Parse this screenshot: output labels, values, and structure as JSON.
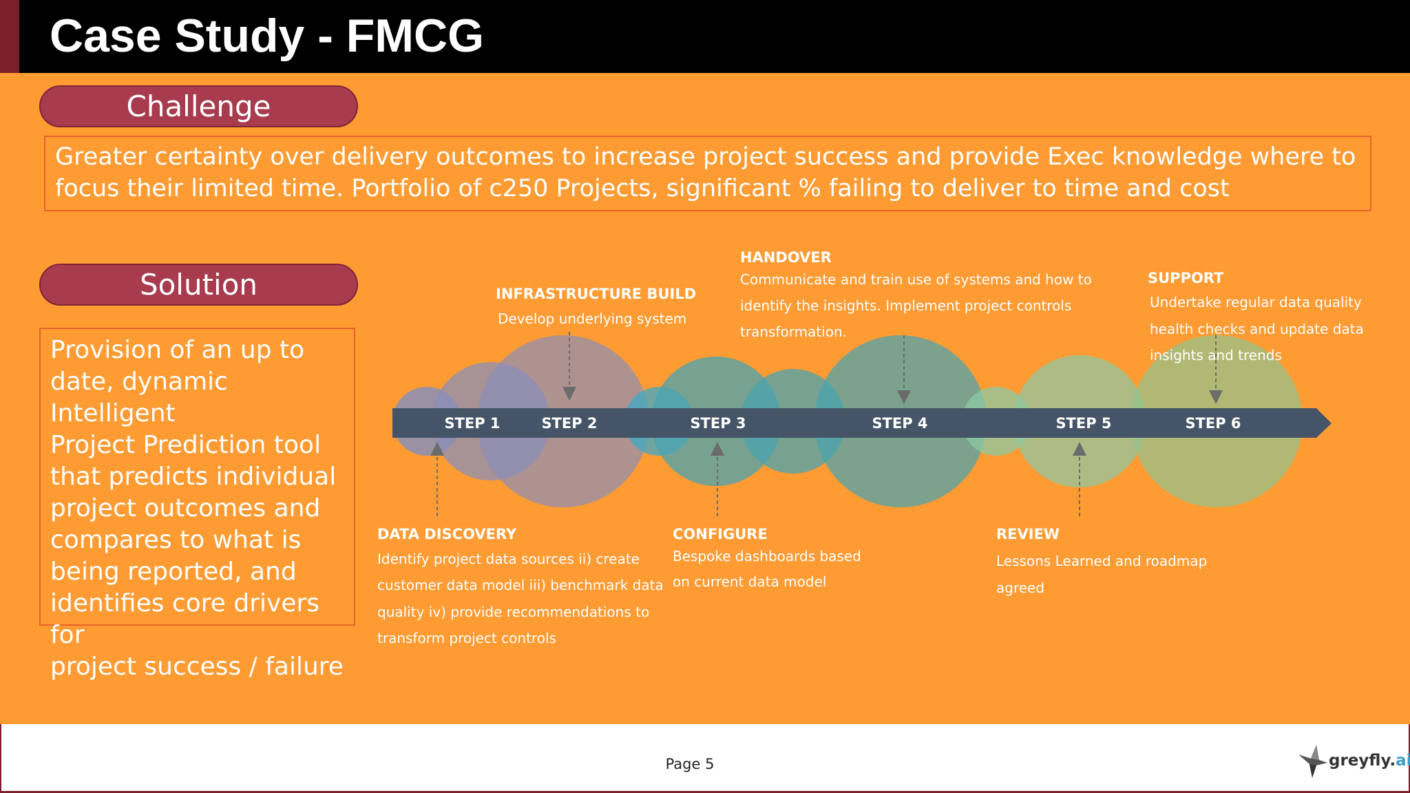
{
  "header": {
    "title": "Case Study - FMCG"
  },
  "challenge": {
    "label": "Challenge",
    "lines": [
      "Greater certainty over delivery outcomes to increase project success and provide Exec knowledge where to",
      "focus their limited time. Portfolio of c250 Projects, significant % failing to deliver to time and cost"
    ]
  },
  "solution": {
    "label": "Solution",
    "lines": [
      "Provision of an up to",
      "date, dynamic Intelligent",
      "Project Prediction tool",
      "that predicts individual",
      "project outcomes and",
      "compares to what is",
      "being reported, and",
      "identifies core drivers for",
      "project success / failure"
    ]
  },
  "steps": [
    "STEP 1",
    "STEP 2",
    "STEP 3",
    "STEP 4",
    "STEP 5",
    "STEP 6"
  ],
  "phases": {
    "data_discovery": {
      "title": "DATA DISCOVERY",
      "lines": [
        "Identify project data sources ii) create",
        "customer data model iii) benchmark data",
        "quality iv) provide recommendations to",
        "transform project controls"
      ]
    },
    "infrastructure_build": {
      "title": "INFRASTRUCTURE BUILD",
      "lines": [
        "Develop underlying system"
      ]
    },
    "configure": {
      "title": "CONFIGURE",
      "lines": [
        "Bespoke dashboards based",
        "on current data model"
      ]
    },
    "handover": {
      "title": "HANDOVER",
      "lines": [
        "Communicate and train use of systems and how to",
        "identify the insights.  Implement project controls",
        "transformation."
      ]
    },
    "review": {
      "title": "REVIEW",
      "lines": [
        "Lessons Learned and roadmap",
        "agreed"
      ]
    },
    "support": {
      "title": "SUPPORT",
      "lines": [
        "Undertake regular data quality",
        "health checks and update data",
        "insights and trends"
      ]
    }
  },
  "footer": {
    "page": "Page 5",
    "logo_main": "greyfly.",
    "logo_accent": "ai"
  },
  "colors": {
    "background": "#ff9b33",
    "header": "#000000",
    "pill": "#a83b4e",
    "box_border": "#e5622a",
    "arrow_bar": "#455466"
  },
  "icons": [
    "greyfly-bird-logo-icon"
  ]
}
